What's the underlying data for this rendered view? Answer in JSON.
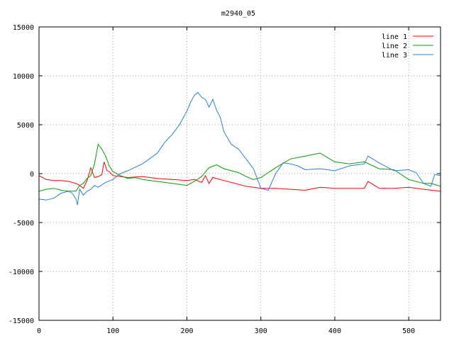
{
  "chart_data": {
    "type": "line",
    "title": "m2940_05",
    "xlabel": "",
    "ylabel": "",
    "xlim": [
      0,
      543
    ],
    "ylim": [
      -15000,
      15000
    ],
    "x_ticks": [
      0,
      100,
      200,
      300,
      400,
      500
    ],
    "y_ticks": [
      -15000,
      -10000,
      -5000,
      0,
      5000,
      10000,
      15000
    ],
    "grid": true,
    "legend_position": "top-right",
    "series": [
      {
        "name": "line 1",
        "color": "#ff0000",
        "x": [
          0,
          10,
          20,
          30,
          40,
          50,
          55,
          60,
          65,
          70,
          75,
          80,
          85,
          88,
          92,
          95,
          100,
          110,
          120,
          140,
          160,
          180,
          200,
          210,
          220,
          225,
          230,
          235,
          240,
          250,
          260,
          270,
          280,
          290,
          300,
          320,
          340,
          360,
          380,
          400,
          420,
          440,
          445,
          460,
          480,
          500,
          520,
          543
        ],
        "values": [
          -200,
          -600,
          -700,
          -700,
          -800,
          -1000,
          -1200,
          -1500,
          -700,
          600,
          -400,
          -300,
          -100,
          1200,
          300,
          200,
          -200,
          -300,
          -400,
          -300,
          -500,
          -600,
          -700,
          -600,
          -900,
          -200,
          -1000,
          -400,
          -500,
          -700,
          -900,
          -1100,
          -1300,
          -1400,
          -1500,
          -1500,
          -1600,
          -1700,
          -1400,
          -1500,
          -1500,
          -1500,
          -800,
          -1500,
          -1500,
          -1400,
          -1600,
          -1800
        ]
      },
      {
        "name": "line 2",
        "color": "#00a000",
        "x": [
          0,
          10,
          20,
          30,
          40,
          50,
          55,
          60,
          65,
          70,
          75,
          80,
          85,
          90,
          95,
          100,
          110,
          120,
          130,
          140,
          160,
          180,
          200,
          210,
          220,
          230,
          240,
          250,
          260,
          270,
          280,
          290,
          300,
          320,
          340,
          360,
          380,
          400,
          420,
          440,
          460,
          480,
          500,
          520,
          530,
          543
        ],
        "values": [
          -1800,
          -1600,
          -1500,
          -1700,
          -1800,
          -1800,
          -1200,
          -1000,
          -500,
          -200,
          1000,
          3000,
          2500,
          1800,
          800,
          200,
          -200,
          -500,
          -400,
          -600,
          -800,
          -1000,
          -1200,
          -800,
          -300,
          600,
          900,
          500,
          300,
          100,
          -300,
          -600,
          -400,
          600,
          1500,
          1800,
          2100,
          1200,
          1000,
          1200,
          500,
          400,
          -600,
          -1000,
          -1000,
          -1300
        ]
      },
      {
        "name": "line 3",
        "color": "#2a7fd4",
        "x": [
          0,
          10,
          20,
          30,
          40,
          45,
          50,
          52,
          55,
          60,
          65,
          70,
          75,
          80,
          90,
          100,
          110,
          120,
          140,
          160,
          170,
          180,
          190,
          200,
          205,
          210,
          215,
          220,
          225,
          230,
          235,
          240,
          245,
          250,
          260,
          270,
          280,
          290,
          300,
          310,
          320,
          330,
          340,
          350,
          360,
          380,
          400,
          420,
          440,
          445,
          460,
          480,
          500,
          510,
          520,
          530,
          535,
          543
        ],
        "values": [
          -2600,
          -2700,
          -2500,
          -2000,
          -1800,
          -2000,
          -2600,
          -3200,
          -1600,
          -2200,
          -1800,
          -1600,
          -1200,
          -1400,
          -900,
          -600,
          0,
          300,
          1000,
          2100,
          3200,
          4000,
          5000,
          6400,
          7300,
          8000,
          8300,
          7800,
          7600,
          6800,
          7600,
          6500,
          5800,
          4300,
          3000,
          2500,
          1500,
          500,
          -1500,
          -1700,
          0,
          1100,
          1000,
          800,
          400,
          500,
          300,
          800,
          1000,
          1800,
          1100,
          300,
          400,
          100,
          -1000,
          -1300,
          -100,
          -200
        ]
      }
    ]
  }
}
